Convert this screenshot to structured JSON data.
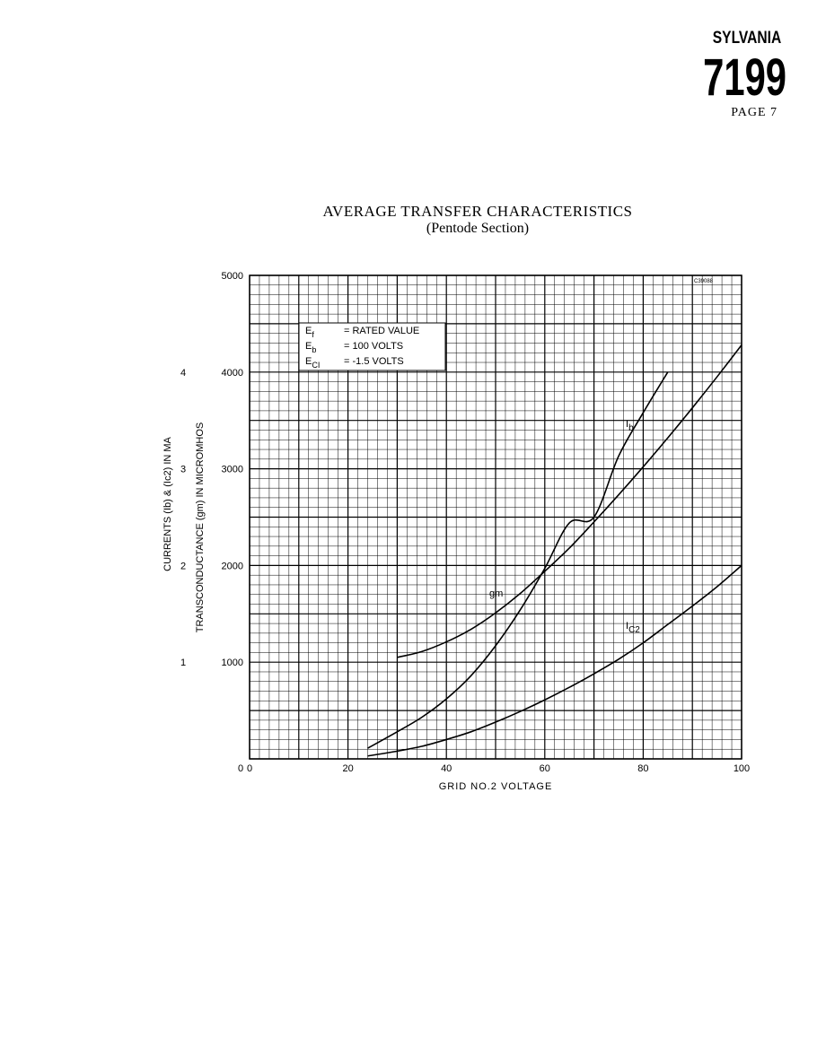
{
  "header": {
    "brand": "SYLVANIA",
    "model": "7199",
    "page": "PAGE 7"
  },
  "chart_data": {
    "type": "line",
    "title": "AVERAGE TRANSFER CHARACTERISTICS",
    "subtitle": "(Pentode Section)",
    "code": "C39088",
    "xlabel": "GRID NO.2 VOLTAGE",
    "ylabel_outer": "CURRENTS (Ib) & (Ic2) IN MA",
    "ylabel_inner": "TRANSCONDUCTANCE (gm) IN MICROMHOS",
    "xlim": [
      0,
      100
    ],
    "ylim": [
      0,
      5000
    ],
    "x_ticks": [
      "0",
      "20",
      "40",
      "60",
      "80",
      "100"
    ],
    "y_ticks": [
      "1000",
      "2000",
      "3000",
      "4000",
      "5000"
    ],
    "y_ticks_ma": [
      "1",
      "2",
      "3",
      "4"
    ],
    "conditions": [
      {
        "sym": "Ef",
        "val": "= RATED VALUE"
      },
      {
        "sym": "Eb",
        "val": "= 100 VOLTS"
      },
      {
        "sym": "Ec1",
        "val": "= -1.5 VOLTS"
      }
    ],
    "series": [
      {
        "name": "gm",
        "label": "gm",
        "points": [
          [
            30,
            1050
          ],
          [
            35,
            1110
          ],
          [
            40,
            1210
          ],
          [
            45,
            1340
          ],
          [
            50,
            1510
          ],
          [
            55,
            1710
          ],
          [
            60,
            1940
          ],
          [
            65,
            2180
          ],
          [
            70,
            2450
          ],
          [
            75,
            2730
          ],
          [
            80,
            3020
          ],
          [
            85,
            3320
          ],
          [
            90,
            3630
          ],
          [
            95,
            3950
          ],
          [
            100,
            4280
          ]
        ]
      },
      {
        "name": "Ib",
        "label": "Ib",
        "points": [
          [
            24,
            110
          ],
          [
            30,
            280
          ],
          [
            35,
            430
          ],
          [
            40,
            620
          ],
          [
            45,
            860
          ],
          [
            50,
            1170
          ],
          [
            55,
            1540
          ],
          [
            60,
            1970
          ],
          [
            65,
            2440
          ],
          [
            70,
            2500
          ],
          [
            75,
            3130
          ],
          [
            80,
            3580
          ],
          [
            85,
            4000
          ]
        ]
      },
      {
        "name": "Ic2",
        "label": "Ic2",
        "points": [
          [
            24,
            30
          ],
          [
            30,
            80
          ],
          [
            35,
            130
          ],
          [
            40,
            200
          ],
          [
            45,
            280
          ],
          [
            50,
            380
          ],
          [
            55,
            490
          ],
          [
            60,
            610
          ],
          [
            65,
            740
          ],
          [
            70,
            880
          ],
          [
            75,
            1030
          ],
          [
            80,
            1200
          ],
          [
            85,
            1390
          ],
          [
            90,
            1580
          ],
          [
            95,
            1780
          ],
          [
            100,
            2000
          ]
        ]
      }
    ]
  }
}
